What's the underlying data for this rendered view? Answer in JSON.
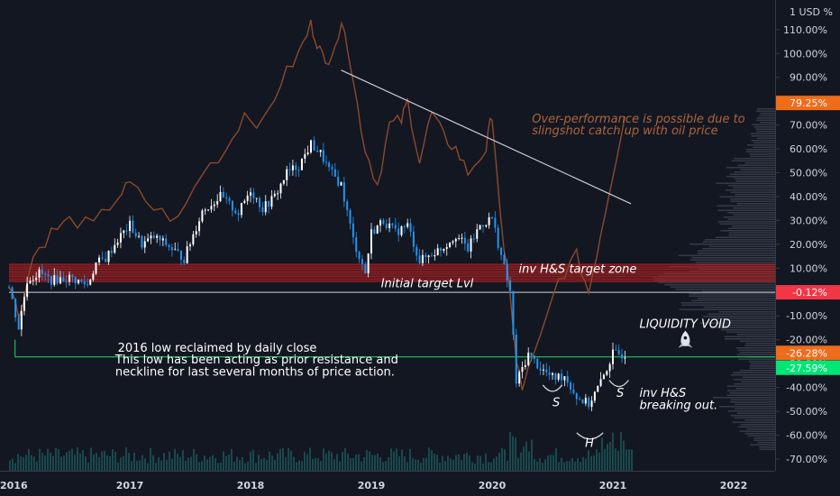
{
  "chart_data": {
    "type": "line",
    "y_unit_label": "1 USD %",
    "yticks": [
      110,
      100,
      90,
      80,
      70,
      60,
      50,
      40,
      30,
      20,
      10,
      0,
      -10,
      -20,
      -30,
      -40,
      -50,
      -60,
      -70
    ],
    "ylim": [
      -72,
      118
    ],
    "xticks": [
      "2016",
      "2017",
      "2018",
      "2019",
      "2020",
      "2021",
      "2022"
    ],
    "xlim": [
      2016.0,
      2022.3
    ],
    "grid": false,
    "series": [
      {
        "role": "price-candles",
        "color_up": "#ffffff",
        "color_down": "#2196f3",
        "x": [
          2016.0,
          2016.08,
          2016.15,
          2016.25,
          2016.35,
          2016.5,
          2016.65,
          2016.72,
          2016.8,
          2016.9,
          2017.0,
          2017.1,
          2017.2,
          2017.3,
          2017.45,
          2017.6,
          2017.75,
          2017.9,
          2018.0,
          2018.1,
          2018.2,
          2018.3,
          2018.4,
          2018.5,
          2018.58,
          2018.65,
          2018.75,
          2018.85,
          2018.95,
          2019.0,
          2019.1,
          2019.2,
          2019.3,
          2019.4,
          2019.5,
          2019.6,
          2019.7,
          2019.8,
          2019.9,
          2020.0,
          2020.1,
          2020.15,
          2020.2,
          2020.3,
          2020.4,
          2020.5,
          2020.6,
          2020.7,
          2020.8,
          2020.9,
          2021.0,
          2021.1
        ],
        "y": [
          2,
          -15,
          5,
          8,
          5,
          6,
          3,
          12,
          14,
          22,
          28,
          20,
          23,
          20,
          14,
          34,
          40,
          33,
          43,
          35,
          40,
          50,
          53,
          62,
          58,
          51,
          45,
          22,
          8,
          25,
          30,
          25,
          28,
          13,
          16,
          19,
          24,
          18,
          28,
          31,
          10,
          0,
          -38,
          -26,
          -32,
          -36,
          -35,
          -44,
          -47,
          -38,
          -26,
          -26
        ]
      },
      {
        "role": "oil-price-overlay",
        "color": "#8b4a2b",
        "x": [
          2016.0,
          2016.08,
          2016.2,
          2016.35,
          2016.5,
          2016.7,
          2016.9,
          2017.0,
          2017.2,
          2017.4,
          2017.6,
          2017.8,
          2017.95,
          2018.1,
          2018.25,
          2018.4,
          2018.5,
          2018.55,
          2018.62,
          2018.7,
          2018.78,
          2018.85,
          2018.95,
          2019.05,
          2019.15,
          2019.25,
          2019.3,
          2019.4,
          2019.5,
          2019.6,
          2019.7,
          2019.8,
          2019.95,
          2020.0,
          2020.1,
          2020.15,
          2020.2,
          2020.25,
          2020.4,
          2020.55,
          2020.7,
          2020.8,
          2020.9,
          2021.0,
          2021.1
        ],
        "y": [
          5,
          -10,
          15,
          25,
          30,
          28,
          40,
          45,
          35,
          30,
          50,
          60,
          75,
          70,
          88,
          100,
          112,
          105,
          95,
          105,
          112,
          88,
          60,
          45,
          70,
          72,
          80,
          55,
          75,
          65,
          60,
          50,
          60,
          75,
          15,
          0,
          -30,
          -40,
          -20,
          5,
          15,
          0,
          25,
          50,
          75
        ]
      }
    ],
    "volume_color": "#26a69a",
    "price_badges": [
      {
        "label": "79.25%",
        "value": 79.25,
        "color": "#ef6c1a"
      },
      {
        "label": "-0.12%",
        "value": -0.12,
        "color": "#f23645"
      },
      {
        "label": "-26.28%",
        "value": -26.28,
        "color": "#ef6c1a"
      },
      {
        "label": "-27.59%",
        "value": -27.59,
        "color": "#00e676"
      }
    ],
    "zones": [
      {
        "name": "inv H&S target zone",
        "from": 4,
        "to": 12,
        "color": "#a31d1d"
      }
    ],
    "levels": [
      {
        "name": "initial target",
        "value": -0.12,
        "color": "#d1d4dc",
        "x_from": 2016.0
      },
      {
        "name": "2016 low",
        "value": -27.2,
        "color": "#1ddc6b",
        "x_from": 2016.05
      }
    ],
    "trendline": {
      "x": [
        2018.75,
        2021.15
      ],
      "y": [
        93,
        37
      ],
      "color": "#c8c8d0"
    },
    "annotations": [
      {
        "text": "inv H&S target zone",
        "x": 2020.22,
        "y": 8,
        "style": "italic"
      },
      {
        "text": "Initial target Lvl",
        "x": 2019.08,
        "y": 2,
        "style": "italic"
      },
      {
        "text": "LIQUIDITY VOID",
        "x": 2021.22,
        "y": -15,
        "style": "italic"
      },
      {
        "text": "Over-performance is possible due to",
        "x": 2020.33,
        "y": 71,
        "style": "orange"
      },
      {
        "text": "slingshot catch up with oil price",
        "x": 2020.33,
        "y": 66,
        "style": "orange"
      },
      {
        "text": "2016 low reclaimed by daily close",
        "x": 2016.9,
        "y": -25,
        "style": "plain"
      },
      {
        "text": "This low has been acting as prior resistance and",
        "x": 2016.88,
        "y": -30,
        "style": "plain"
      },
      {
        "text": "neckline for last several months of price action.",
        "x": 2016.88,
        "y": -35,
        "style": "plain"
      },
      {
        "text": "S",
        "x": 2020.5,
        "y": -48,
        "style": "italic"
      },
      {
        "text": "S",
        "x": 2021.03,
        "y": -44,
        "style": "italic"
      },
      {
        "text": "H",
        "x": 2020.77,
        "y": -65,
        "style": "italic"
      },
      {
        "text": "inv H&S",
        "x": 2021.22,
        "y": -44,
        "style": "italic"
      },
      {
        "text": "breaking out.",
        "x": 2021.22,
        "y": -49,
        "style": "italic"
      }
    ],
    "pattern_arcs": [
      {
        "x": [
          2020.42,
          2020.58
        ],
        "y": -39
      },
      {
        "x": [
          2020.7,
          2020.92
        ],
        "y": -59
      },
      {
        "x": [
          2020.97,
          2021.13
        ],
        "y": -37
      }
    ],
    "rocket_icon": "rocket-icon"
  }
}
